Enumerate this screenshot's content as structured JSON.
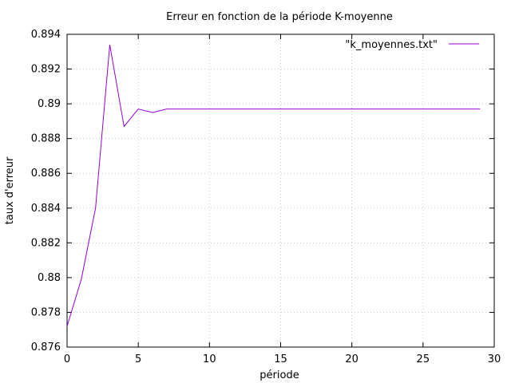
{
  "chart_data": {
    "type": "line",
    "title": "Erreur en fonction de la période K-moyenne",
    "xlabel": "période",
    "ylabel": "taux d'erreur",
    "xlim": [
      0,
      30
    ],
    "ylim": [
      0.876,
      0.894
    ],
    "xticks": [
      0,
      5,
      10,
      15,
      20,
      25,
      30
    ],
    "xtick_labels": [
      "0",
      "5",
      "10",
      "15",
      "20",
      "25",
      "30"
    ],
    "yticks": [
      0.876,
      0.878,
      0.88,
      0.882,
      0.884,
      0.886,
      0.888,
      0.89,
      0.892,
      0.894
    ],
    "ytick_labels": [
      "0.876",
      "0.878",
      "0.88",
      "0.882",
      "0.884",
      "0.886",
      "0.888",
      "0.89",
      "0.892",
      "0.894"
    ],
    "grid": true,
    "legend_position": "top-right",
    "series": [
      {
        "name": "\"k_moyennes.txt\"",
        "color": "#9400d3",
        "x": [
          0,
          1,
          2,
          3,
          4,
          5,
          6,
          7,
          8,
          9,
          10,
          11,
          12,
          13,
          14,
          15,
          16,
          17,
          18,
          19,
          20,
          21,
          22,
          23,
          24,
          25,
          26,
          27,
          28,
          29
        ],
        "y": [
          0.8772,
          0.8799,
          0.884,
          0.8934,
          0.8887,
          0.8897,
          0.8895,
          0.8897,
          0.8897,
          0.8897,
          0.8897,
          0.8897,
          0.8897,
          0.8897,
          0.8897,
          0.8897,
          0.8897,
          0.8897,
          0.8897,
          0.8897,
          0.8897,
          0.8897,
          0.8897,
          0.8897,
          0.8897,
          0.8897,
          0.8897,
          0.8897,
          0.8897,
          0.8897
        ]
      }
    ]
  }
}
